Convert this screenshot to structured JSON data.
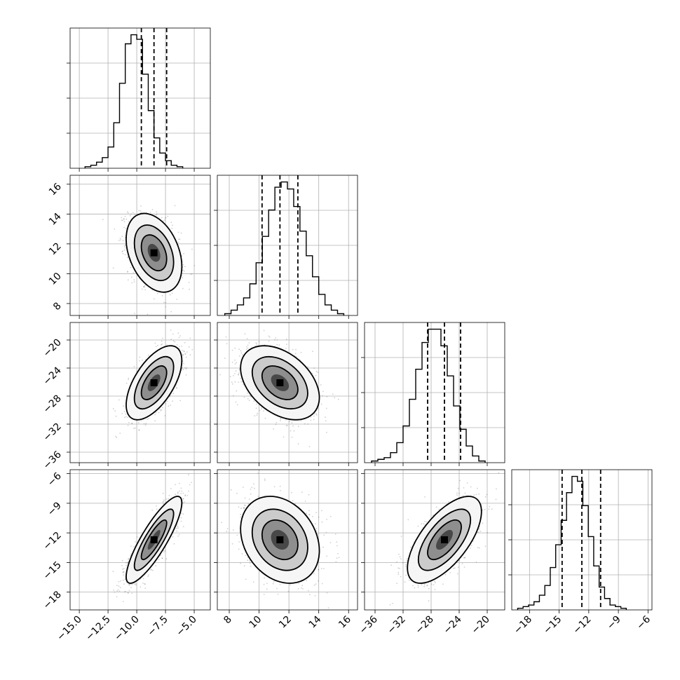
{
  "chart_data": {
    "type": "corner",
    "title": "",
    "grid": true,
    "histograms": [
      {
        "param_index": 0,
        "bin_start": -14.5,
        "bin_width": 0.5,
        "counts": [
          1,
          2,
          4,
          7,
          14,
          30,
          56,
          82,
          88,
          85,
          62,
          38,
          20,
          10,
          5,
          2,
          1
        ],
        "quantiles": [
          -9.6,
          -8.5,
          -7.4
        ],
        "xlim": [
          -15.8,
          -3.6
        ]
      },
      {
        "param_index": 1,
        "bin_start": 7.7,
        "bin_width": 0.42,
        "counts": [
          1,
          3,
          6,
          10,
          18,
          30,
          45,
          60,
          73,
          76,
          72,
          62,
          48,
          34,
          22,
          12,
          6,
          3,
          1
        ],
        "quantiles": [
          10.2,
          11.4,
          12.6
        ],
        "xlim": [
          7.2,
          16.6
        ]
      },
      {
        "param_index": 2,
        "bin_start": -36.5,
        "bin_width": 0.9,
        "counts": [
          1,
          2,
          3,
          6,
          12,
          22,
          38,
          56,
          72,
          80,
          80,
          70,
          52,
          34,
          20,
          10,
          4,
          1
        ],
        "quantiles": [
          -28.5,
          -26.1,
          -23.8
        ],
        "xlim": [
          -37.5,
          -17.5
        ]
      },
      {
        "param_index": 3,
        "bin_start": -19.2,
        "bin_width": 0.55,
        "counts": [
          1,
          2,
          3,
          5,
          9,
          15,
          26,
          40,
          55,
          72,
          82,
          79,
          64,
          45,
          27,
          14,
          7,
          3,
          2,
          1
        ],
        "quantiles": [
          -14.7,
          -12.7,
          -10.8
        ],
        "xlim": [
          -19.8,
          -5.6
        ]
      }
    ],
    "pairs": [
      {
        "x_param": 0,
        "y_param": 1,
        "mean_x": -8.5,
        "mean_y": 11.4,
        "sd_x": 1.1,
        "sd_y": 1.2,
        "corr": -0.35
      },
      {
        "x_param": 0,
        "y_param": 2,
        "mean_x": -8.5,
        "mean_y": -26.1,
        "sd_x": 1.1,
        "sd_y": 2.4,
        "corr": 0.6
      },
      {
        "x_param": 1,
        "y_param": 2,
        "mean_x": 11.4,
        "mean_y": -26.1,
        "sd_x": 1.2,
        "sd_y": 2.4,
        "corr": -0.4
      },
      {
        "x_param": 0,
        "y_param": 3,
        "mean_x": -8.5,
        "mean_y": -12.7,
        "sd_x": 1.1,
        "sd_y": 2.0,
        "corr": 0.85
      },
      {
        "x_param": 1,
        "y_param": 3,
        "mean_x": 11.4,
        "mean_y": -12.7,
        "sd_x": 1.2,
        "sd_y": 2.0,
        "corr": -0.25
      },
      {
        "x_param": 2,
        "y_param": 3,
        "mean_x": -26.1,
        "mean_y": -12.7,
        "sd_x": 2.4,
        "sd_y": 2.0,
        "corr": 0.65
      }
    ],
    "axes": [
      {
        "param_index": 0,
        "range": [
          -15.8,
          -3.6
        ],
        "ticks": [
          -15.0,
          -12.5,
          -10.0,
          -7.5,
          -5.0
        ],
        "tick_labels": [
          "−15.0",
          "−12.5",
          "−10.0",
          "−7.5",
          "−5.0"
        ]
      },
      {
        "param_index": 1,
        "range": [
          7.2,
          16.6
        ],
        "ticks": [
          8,
          10,
          12,
          14,
          16
        ],
        "tick_labels": [
          "8",
          "10",
          "12",
          "14",
          "16"
        ]
      },
      {
        "param_index": 2,
        "range": [
          -37.5,
          -17.5
        ],
        "ticks": [
          -36,
          -32,
          -28,
          -24,
          -20
        ],
        "tick_labels": [
          "−36",
          "−32",
          "−28",
          "−24",
          "−20"
        ]
      },
      {
        "param_index": 3,
        "range": [
          -19.8,
          -5.6
        ],
        "ticks": [
          -18,
          -15,
          -12,
          -9,
          -6
        ],
        "tick_labels": [
          "−18",
          "−15",
          "−12",
          "−9",
          "−6"
        ]
      }
    ]
  }
}
